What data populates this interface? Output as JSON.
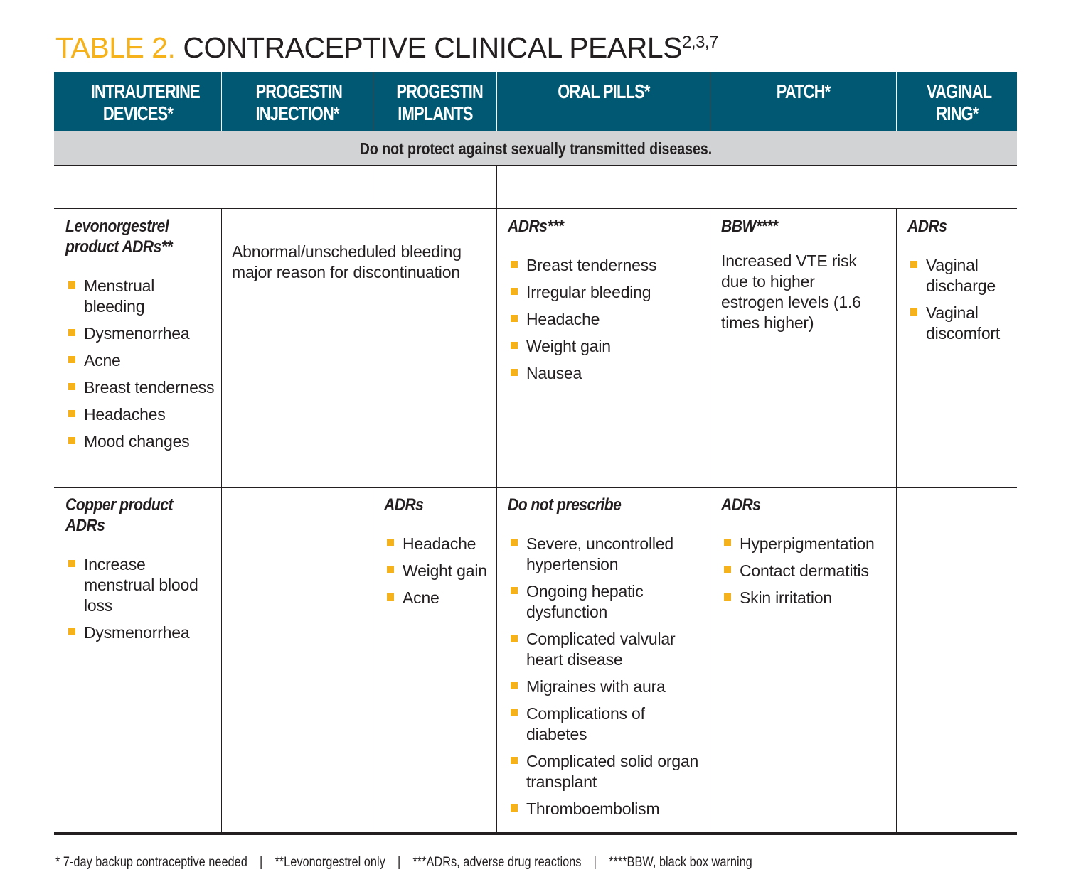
{
  "title": {
    "label": "TABLE 2.",
    "text": "CONTRACEPTIVE CLINICAL PEARLS",
    "refs": "2,3,7"
  },
  "accent_color": "#f5b21b",
  "header_color": "#005872",
  "columns": [
    "INTRAUTERINE DEVICES*",
    "PROGESTIN INJECTION*",
    "PROGESTIN IMPLANTS",
    "ORAL PILLS*",
    "PATCH*",
    "VAGINAL RING*"
  ],
  "banner": "Do not protect against sexually transmitted diseases.",
  "row1": {
    "iud": {
      "heading": "Levonorgestrel product ADRs**",
      "items": [
        "Menstrual bleeding",
        "Dysmenorrhea",
        "Acne",
        "Breast tenderness",
        "Headaches",
        "Mood changes"
      ]
    },
    "progestin": {
      "text": "Abnormal/unscheduled bleeding major reason for discontinuation"
    },
    "oral": {
      "heading": "ADRs***",
      "items": [
        "Breast tenderness",
        "Irregular bleeding",
        "Headache",
        "Weight gain",
        "Nausea"
      ]
    },
    "patch": {
      "heading": "BBW****",
      "text": "Increased VTE risk due to higher estrogen levels (1.6 times higher)"
    },
    "ring": {
      "heading": "ADRs",
      "items": [
        "Vaginal discharge",
        "Vaginal discomfort"
      ]
    }
  },
  "row2": {
    "iud": {
      "heading": "Copper product ADRs",
      "items": [
        "Increase menstrual blood loss",
        "Dysmenorrhea"
      ]
    },
    "implants": {
      "heading": "ADRs",
      "items": [
        "Headache",
        "Weight gain",
        "Acne"
      ]
    },
    "oral": {
      "heading": "Do not prescribe",
      "items": [
        "Severe, uncontrolled hypertension",
        "Ongoing hepatic dysfunction",
        "Complicated valvular heart disease",
        "Migraines with aura",
        "Complications of diabetes",
        "Complicated solid organ transplant",
        "Thromboembolism"
      ]
    },
    "patch": {
      "heading": "ADRs",
      "items": [
        "Hyperpigmentation",
        "Contact dermatitis",
        "Skin irritation"
      ]
    }
  },
  "footer": [
    "* 7-day backup contraceptive needed",
    "**Levonorgestrel only",
    "***ADRs, adverse drug reactions",
    "****BBW, black box warning"
  ]
}
